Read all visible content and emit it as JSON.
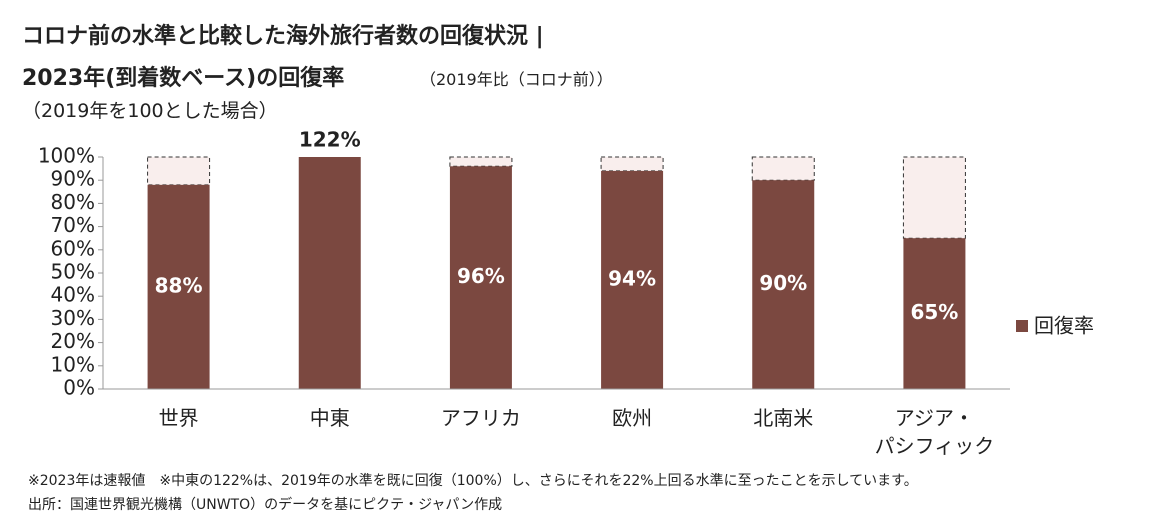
{
  "chart_data": {
    "type": "bar",
    "title": "コロナ前の水準と比較した海外旅行者数の回復状況 |",
    "subtitle": "2023年(到着数ベース)の回復率",
    "subtitle_note": "（2019年比（コロナ前））",
    "y_axis_label": "（2019年を100とした場合）",
    "categories": [
      "世界",
      "中東",
      "アフリカ",
      "欧州",
      "北南米",
      "アジア・\nパシフィック"
    ],
    "series": [
      {
        "name": "回復率",
        "color": "#7b4840",
        "values": [
          88,
          122,
          96,
          94,
          90,
          65
        ],
        "value_labels": [
          "88%",
          "122%",
          "96%",
          "94%",
          "90%",
          "65%"
        ]
      }
    ],
    "ylim": [
      0,
      100
    ],
    "yticks": [
      {
        "value": 0,
        "label": "0%"
      },
      {
        "value": 10,
        "label": "10%"
      },
      {
        "value": 20,
        "label": "20%"
      },
      {
        "value": 30,
        "label": "30%"
      },
      {
        "value": 40,
        "label": "40%"
      },
      {
        "value": 50,
        "label": "50%"
      },
      {
        "value": 60,
        "label": "60%"
      },
      {
        "value": 70,
        "label": "70%"
      },
      {
        "value": 80,
        "label": "80%"
      },
      {
        "value": 90,
        "label": "90%"
      },
      {
        "value": 100,
        "label": "100%"
      }
    ],
    "gap_fill": "#f9eeed",
    "legend_position": "right",
    "notes": [
      "※2023年は速報値　※中東の122%は、2019年の水準を既に回復（100%）し、さらにそれを22%上回る水準に至ったことを示しています。",
      "出所：国連世界観光機構（UNWTO）のデータを基にピクテ・ジャパン作成"
    ]
  }
}
